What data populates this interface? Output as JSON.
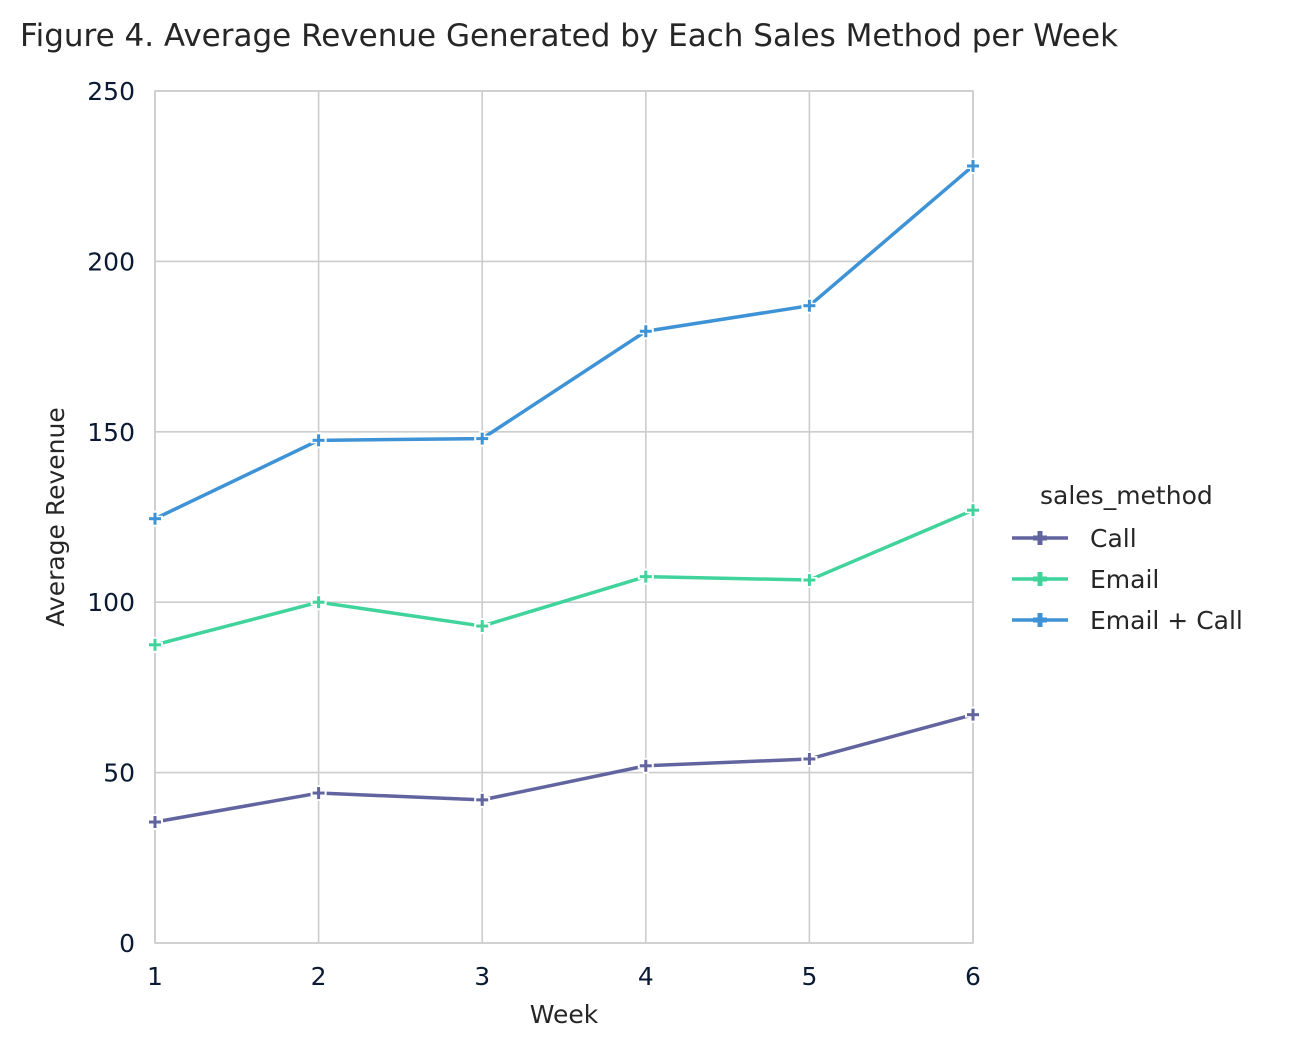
{
  "chart_data": {
    "type": "line",
    "title": "Figure 4. Average Revenue Generated by Each Sales Method per Week",
    "xlabel": "Week",
    "ylabel": "Average Revenue",
    "x": [
      1,
      2,
      3,
      4,
      5,
      6
    ],
    "x_ticks": [
      "1",
      "2",
      "3",
      "4",
      "5",
      "6"
    ],
    "xlim": [
      1,
      6
    ],
    "ylim": [
      0,
      250
    ],
    "y_ticks": [
      "0",
      "50",
      "100",
      "150",
      "200",
      "250"
    ],
    "grid": true,
    "legend": {
      "title": "sales_method",
      "placement": "right"
    },
    "marker": "plus",
    "series": [
      {
        "name": "Call",
        "color": "#6264a0",
        "values": [
          35.5,
          44,
          42,
          52,
          54,
          67
        ]
      },
      {
        "name": "Email",
        "color": "#40d49c",
        "values": [
          87.5,
          100,
          93,
          107.5,
          106.5,
          127
        ]
      },
      {
        "name": "Email + Call",
        "color": "#3e92d6",
        "values": [
          124.5,
          147.5,
          148,
          179.5,
          187,
          228
        ]
      }
    ]
  }
}
